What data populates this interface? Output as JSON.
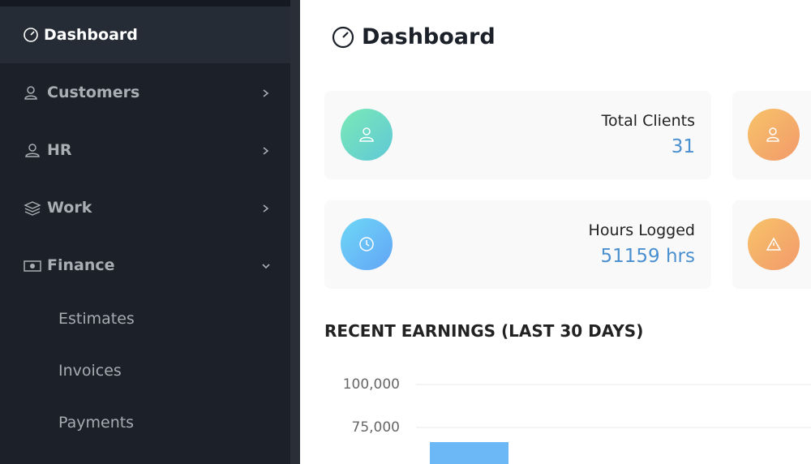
{
  "sidebar": {
    "items": [
      {
        "label": "Dashboard"
      },
      {
        "label": "Customers"
      },
      {
        "label": "HR"
      },
      {
        "label": "Work"
      },
      {
        "label": "Finance"
      }
    ],
    "subitems": [
      "Estimates",
      "Invoices",
      "Payments"
    ]
  },
  "header": {
    "title": "Dashboard"
  },
  "cards": [
    {
      "label": "Total Clients",
      "value": "31"
    },
    {
      "label": "Hours Logged",
      "value": "51159 hrs"
    }
  ],
  "earnings_chart": {
    "type": "bar",
    "title": "RECENT EARNINGS (LAST 30 DAYS)",
    "values": [
      66500
    ],
    "color": "#6cb8f6",
    "yticks": [
      {
        "value": 100000,
        "label": "100,000"
      },
      {
        "value": 75000,
        "label": "75,000"
      }
    ]
  }
}
